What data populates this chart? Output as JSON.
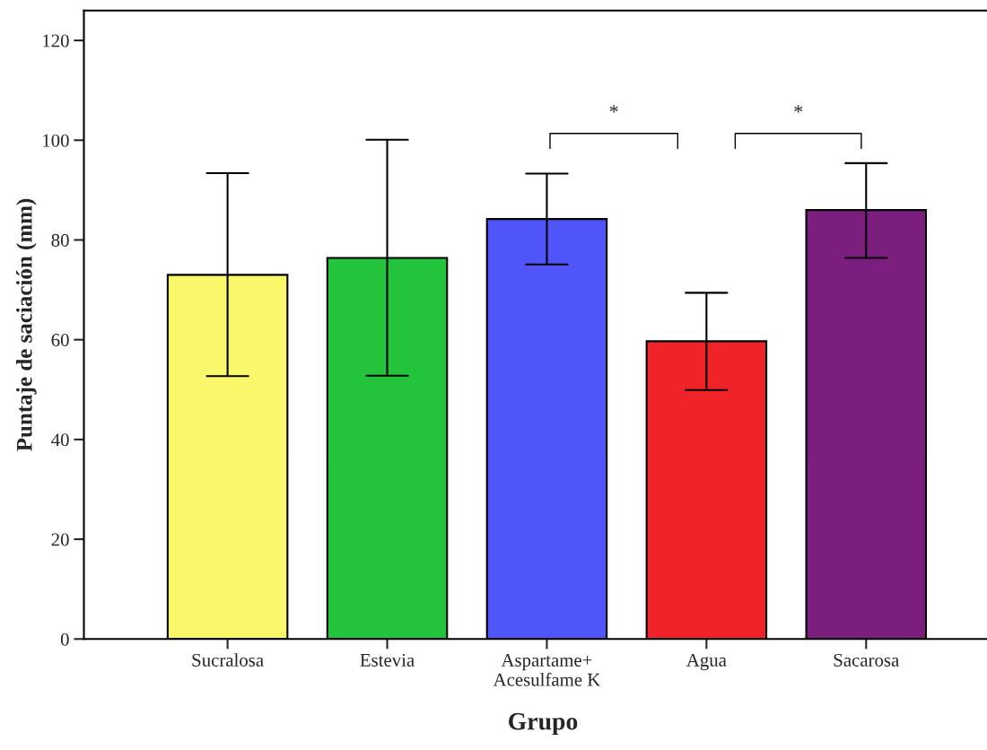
{
  "chart_data": {
    "type": "bar",
    "xlabel": "Grupo",
    "ylabel": "Puntaje de saciación (mm)",
    "categories": [
      "Sucralosa",
      "Estevia",
      "Aspartame+\nAcesulfame K",
      "Agua",
      "Sacarosa"
    ],
    "values": [
      73,
      76.4,
      84.2,
      59.7,
      86
    ],
    "colors": [
      "#faf76a",
      "#24c33c",
      "#4f55f9",
      "#ef2328",
      "#7c1e7e"
    ],
    "errors": [
      [
        52.7,
        93.4
      ],
      [
        52.8,
        100.1
      ],
      [
        75.1,
        93.3
      ],
      [
        49.9,
        69.4
      ],
      [
        76.4,
        95.4
      ]
    ],
    "ylim": [
      0,
      126
    ],
    "yticks": [
      0,
      20,
      40,
      60,
      80,
      100,
      120
    ],
    "annotations": [
      "*",
      "*"
    ],
    "grid": false
  }
}
